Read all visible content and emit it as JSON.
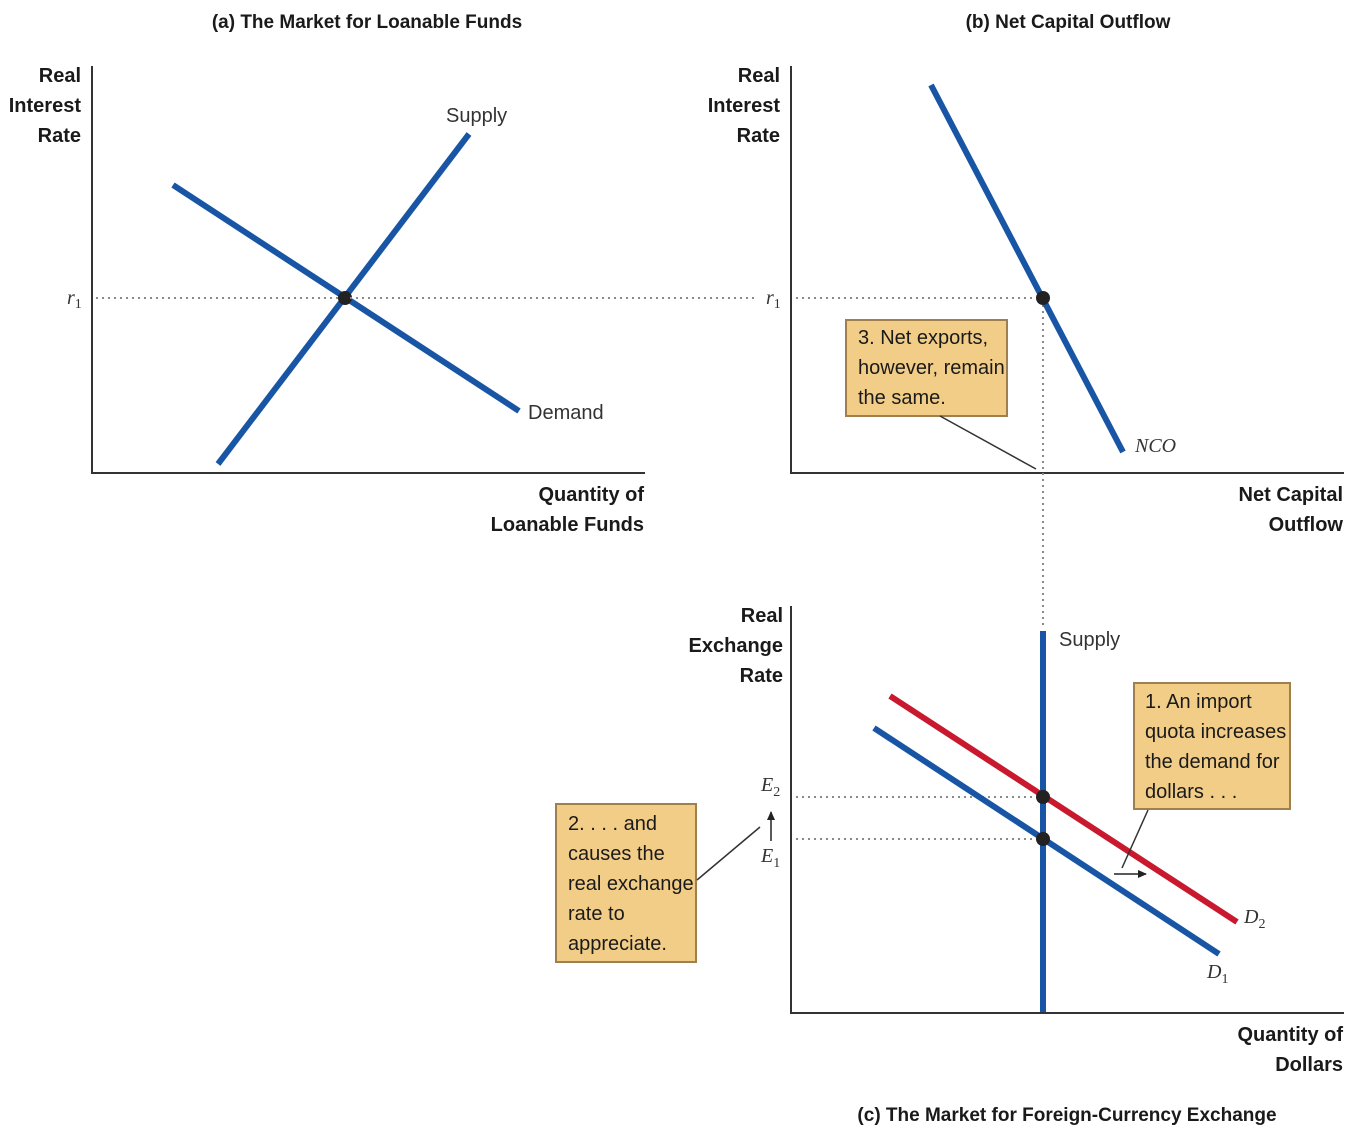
{
  "panel_a": {
    "title": "(a) The Market for Loanable Funds",
    "y_label": [
      "Real",
      "Interest",
      "Rate"
    ],
    "x_label": [
      "Quantity of",
      "Loanable Funds"
    ],
    "supply_label": "Supply",
    "demand_label": "Demand",
    "rate_tick": {
      "base": "r",
      "sub": "1"
    }
  },
  "panel_b": {
    "title": "(b) Net Capital Outflow",
    "y_label": [
      "Real",
      "Interest",
      "Rate"
    ],
    "x_label": [
      "Net Capital",
      "Outflow"
    ],
    "curve_label": "NCO",
    "rate_tick": {
      "base": "r",
      "sub": "1"
    },
    "note": [
      "3. Net exports,",
      "however, remain",
      "the same."
    ]
  },
  "panel_c": {
    "title": "(c) The Market for Foreign-Currency Exchange",
    "y_label": [
      "Real",
      "Exchange",
      "Rate"
    ],
    "x_label": [
      "Quantity of",
      "Dollars"
    ],
    "supply_label": "Supply",
    "d1_label": {
      "base": "D",
      "sub": "1"
    },
    "d2_label": {
      "base": "D",
      "sub": "2"
    },
    "e1_tick": {
      "base": "E",
      "sub": "1"
    },
    "e2_tick": {
      "base": "E",
      "sub": "2"
    },
    "note_1": [
      "1. An import",
      "quota increases",
      "the demand for",
      "dollars . . ."
    ],
    "note_2": [
      "2. . . . and",
      "causes the",
      "real exchange",
      "rate to",
      "appreciate."
    ]
  },
  "colors": {
    "curve_blue": "#1856a5",
    "curve_red": "#c8192e",
    "note_box": "#f2cd87"
  }
}
